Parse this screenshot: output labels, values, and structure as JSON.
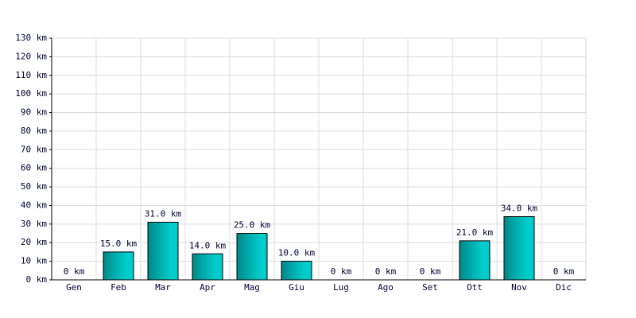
{
  "chart_data": {
    "type": "bar",
    "categories": [
      "Gen",
      "Feb",
      "Mar",
      "Apr",
      "Mag",
      "Giu",
      "Lug",
      "Ago",
      "Set",
      "Ott",
      "Nov",
      "Dic"
    ],
    "values": [
      0,
      15,
      31,
      14,
      25,
      10,
      0,
      0,
      0,
      21,
      34,
      0
    ],
    "value_labels": [
      "0 km",
      "15.0 km",
      "31.0 km",
      "14.0 km",
      "25.0 km",
      "10.0 km",
      "0 km",
      "0 km",
      "0 km",
      "21.0 km",
      "34.0 km",
      "0 km"
    ],
    "color": "#00cccc",
    "ylim": [
      0,
      130
    ],
    "yticks": [
      {
        "value": 0,
        "label": "0 km"
      },
      {
        "value": 10,
        "label": "10 km"
      },
      {
        "value": 20,
        "label": "20 km"
      },
      {
        "value": 30,
        "label": "30 km"
      },
      {
        "value": 40,
        "label": "40 km"
      },
      {
        "value": 50,
        "label": "50 km"
      },
      {
        "value": 60,
        "label": "60 km"
      },
      {
        "value": 70,
        "label": "70 km"
      },
      {
        "value": 80,
        "label": "80 km"
      },
      {
        "value": 90,
        "label": "90 km"
      },
      {
        "value": 100,
        "label": "100 km"
      },
      {
        "value": 110,
        "label": "110 km"
      },
      {
        "value": 120,
        "label": "120 km"
      },
      {
        "value": 130,
        "label": "130 km"
      }
    ],
    "grid": true
  }
}
